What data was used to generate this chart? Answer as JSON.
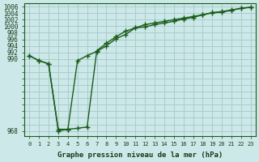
{
  "xlabel": "Graphe pression niveau de la mer (hPa)",
  "bg_color": "#cce8e8",
  "grid_color": "#aacccc",
  "line_color": "#1a5c1a",
  "hours": [
    0,
    1,
    2,
    3,
    4,
    5,
    6,
    7,
    8,
    9,
    10,
    11,
    12,
    13,
    14,
    15,
    16,
    17,
    18,
    19,
    20,
    21,
    22,
    23
  ],
  "series1": [
    991.0,
    989.5,
    988.5,
    968.0,
    968.5,
    989.5,
    991.0,
    992.3,
    994.0,
    996.2,
    997.5,
    999.5,
    999.8,
    1000.5,
    1001.0,
    1001.5,
    1002.2,
    1002.7,
    1003.5,
    1004.1,
    1004.3,
    1004.9,
    1005.5,
    1005.8
  ],
  "series2": [
    991.0,
    989.5,
    988.5,
    968.5,
    968.5,
    968.8,
    969.2,
    992.5,
    994.8,
    996.8,
    998.5,
    999.5,
    1000.5,
    1001.0,
    1001.5,
    1002.0,
    1002.5,
    1003.0,
    1003.5,
    1004.2,
    1004.5,
    1005.0,
    1005.5,
    1005.8
  ],
  "ylim_min": 966.5,
  "ylim_max": 1007.0,
  "ytick_step": 2,
  "ytick_min": 968,
  "ytick_max": 1006,
  "ytick_label_vals": [
    968,
    990,
    992,
    994,
    996,
    998,
    1000,
    1002,
    1004,
    1006
  ]
}
